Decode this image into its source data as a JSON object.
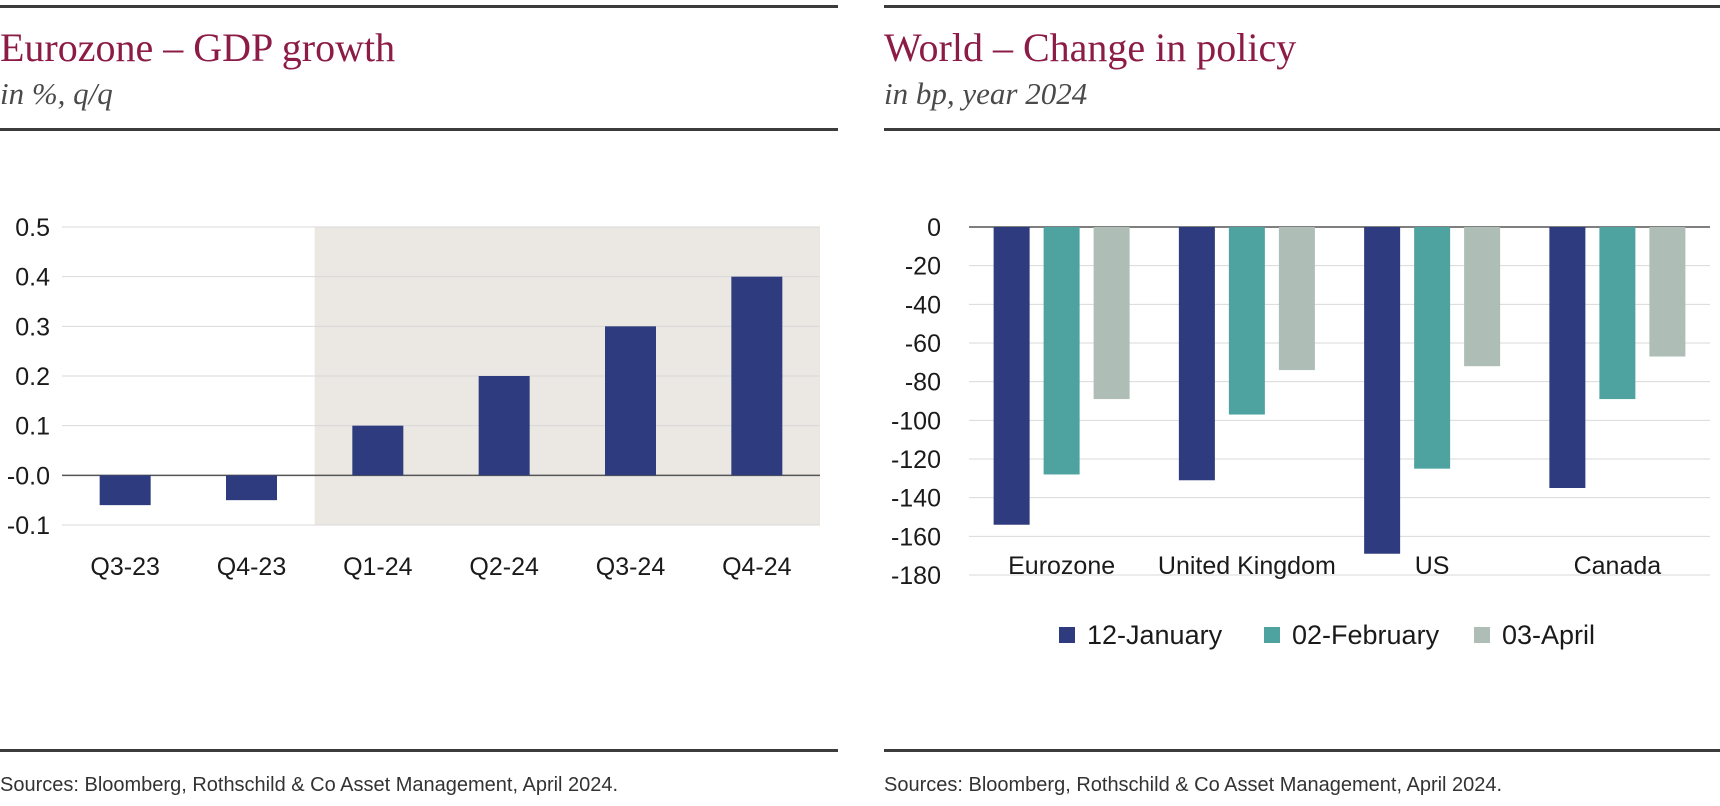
{
  "colors": {
    "title": "#8c1c46",
    "bar_primary": "#2e3b7e",
    "bar_teal": "#4ea3a1",
    "bar_grey": "#aebdb6",
    "shade": "#ebe8e3"
  },
  "left": {
    "title": "Eurozone – GDP growth",
    "subtitle": "in %, q/q",
    "source": "Sources: Bloomberg, Rothschild & Co Asset Management, April 2024."
  },
  "right": {
    "title": "World – Change in policy",
    "subtitle": "in bp, year 2024",
    "source": "Sources: Bloomberg, Rothschild & Co Asset Management, April 2024."
  },
  "chart_data": [
    {
      "type": "bar",
      "title": "Eurozone – GDP growth",
      "subtitle": "in %, q/q",
      "categories": [
        "Q3-23",
        "Q4-23",
        "Q1-24",
        "Q2-24",
        "Q3-24",
        "Q4-24"
      ],
      "values": [
        -0.06,
        -0.05,
        0.1,
        0.2,
        0.3,
        0.4
      ],
      "ylim": [
        -0.1,
        0.5
      ],
      "yticks": [
        0.5,
        0.4,
        0.3,
        0.2,
        0.1,
        0.0,
        -0.1
      ],
      "ytick_labels": [
        "0.5",
        "0.4",
        "0.3",
        "0.2",
        "0.1",
        "-0.0",
        "-0.1"
      ],
      "shaded_categories": [
        "Q1-24",
        "Q2-24",
        "Q3-24",
        "Q4-24"
      ],
      "grid": true,
      "legend": "none"
    },
    {
      "type": "bar",
      "title": "World – Change in policy",
      "subtitle": "in bp, year 2024",
      "categories": [
        "Eurozone",
        "United Kingdom",
        "US",
        "Canada"
      ],
      "series": [
        {
          "name": "12-January",
          "values": [
            -154,
            -131,
            -169,
            -135
          ]
        },
        {
          "name": "02-February",
          "values": [
            -128,
            -97,
            -125,
            -89
          ]
        },
        {
          "name": "03-April",
          "values": [
            -89,
            -74,
            -72,
            -67
          ]
        }
      ],
      "ylim": [
        -180,
        0
      ],
      "yticks": [
        0,
        -20,
        -40,
        -60,
        -80,
        -100,
        -120,
        -140,
        -160,
        -180
      ],
      "ytick_labels": [
        "0",
        "-20",
        "-40",
        "-60",
        "-80",
        "-100",
        "-120",
        "-140",
        "-160",
        "-180"
      ],
      "grid": true,
      "legend": "bottom"
    }
  ]
}
